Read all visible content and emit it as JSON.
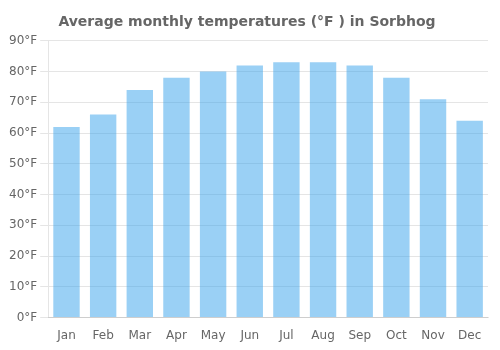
{
  "chart_data": {
    "type": "bar",
    "title": "Average monthly temperatures (°F ) in Sorbhog",
    "categories": [
      "Jan",
      "Feb",
      "Mar",
      "Apr",
      "May",
      "Jun",
      "Jul",
      "Aug",
      "Sep",
      "Oct",
      "Nov",
      "Dec"
    ],
    "values": [
      62,
      66,
      74,
      78,
      80,
      82,
      83,
      83,
      82,
      78,
      71,
      64
    ],
    "ylim": [
      0,
      90
    ],
    "yticks": [
      {
        "value": 0,
        "label": "0°F"
      },
      {
        "value": 10,
        "label": "10°F"
      },
      {
        "value": 20,
        "label": "20°F"
      },
      {
        "value": 30,
        "label": "30°F"
      },
      {
        "value": 40,
        "label": "40°F"
      },
      {
        "value": 50,
        "label": "50°F"
      },
      {
        "value": 60,
        "label": "60°F"
      },
      {
        "value": 70,
        "label": "70°F"
      },
      {
        "value": 80,
        "label": "80°F"
      },
      {
        "value": 90,
        "label": "90°F"
      }
    ],
    "grid": true
  }
}
